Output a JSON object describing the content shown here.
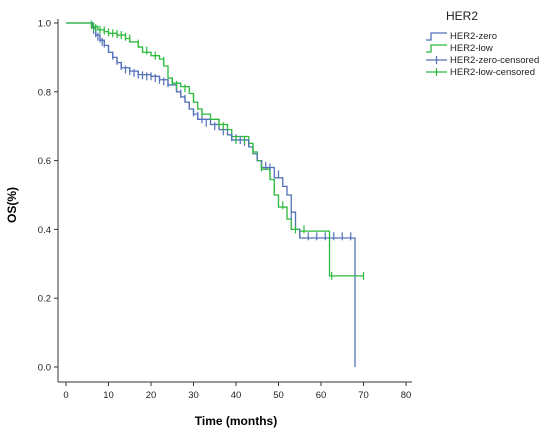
{
  "chart_data": {
    "type": "line",
    "subtype": "kaplan-meier",
    "xlabel": "Time (months)",
    "ylabel": "OS(%)",
    "xlim": [
      0,
      80
    ],
    "ylim": [
      0,
      1.0
    ],
    "xticks": [
      0,
      10,
      20,
      30,
      40,
      50,
      60,
      70,
      80
    ],
    "yticks": [
      0.0,
      0.2,
      0.4,
      0.6,
      0.8,
      1.0
    ],
    "grid": false,
    "legend": {
      "title": "HER2",
      "position": "top-right",
      "entries": [
        "HER2-zero",
        "HER2-low",
        "HER2-zero-censored",
        "HER2-low-censored"
      ]
    },
    "series": [
      {
        "name": "HER2-zero",
        "color": "#5470b8",
        "steps": [
          [
            0,
            1.0
          ],
          [
            6.2,
            0.985
          ],
          [
            7,
            0.965
          ],
          [
            8,
            0.95
          ],
          [
            9,
            0.935
          ],
          [
            10,
            0.915
          ],
          [
            11,
            0.9
          ],
          [
            12,
            0.885
          ],
          [
            13,
            0.87
          ],
          [
            15,
            0.86
          ],
          [
            17,
            0.85
          ],
          [
            20,
            0.845
          ],
          [
            22,
            0.835
          ],
          [
            24,
            0.82
          ],
          [
            26,
            0.8
          ],
          [
            27,
            0.785
          ],
          [
            28,
            0.77
          ],
          [
            29,
            0.75
          ],
          [
            30,
            0.735
          ],
          [
            31,
            0.72
          ],
          [
            34,
            0.705
          ],
          [
            36,
            0.69
          ],
          [
            38,
            0.675
          ],
          [
            39,
            0.66
          ],
          [
            43,
            0.64
          ],
          [
            44,
            0.62
          ],
          [
            45,
            0.6
          ],
          [
            46,
            0.58
          ],
          [
            49,
            0.55
          ],
          [
            51,
            0.525
          ],
          [
            52,
            0.5
          ],
          [
            53,
            0.45
          ],
          [
            54,
            0.4
          ],
          [
            55,
            0.375
          ],
          [
            68,
            0.0
          ]
        ],
        "censored": [
          [
            6,
            0.995
          ],
          [
            6.5,
            0.98
          ],
          [
            7,
            0.97
          ],
          [
            7.5,
            0.96
          ],
          [
            8,
            0.955
          ],
          [
            8.5,
            0.945
          ],
          [
            9,
            0.94
          ],
          [
            10,
            0.925
          ],
          [
            11,
            0.905
          ],
          [
            12,
            0.89
          ],
          [
            13,
            0.875
          ],
          [
            14,
            0.865
          ],
          [
            15,
            0.86
          ],
          [
            16,
            0.855
          ],
          [
            17,
            0.85
          ],
          [
            18,
            0.848
          ],
          [
            19,
            0.845
          ],
          [
            20,
            0.845
          ],
          [
            21,
            0.84
          ],
          [
            22,
            0.835
          ],
          [
            23,
            0.83
          ],
          [
            24,
            0.825
          ],
          [
            26,
            0.81
          ],
          [
            27,
            0.795
          ],
          [
            28,
            0.78
          ],
          [
            29,
            0.76
          ],
          [
            30,
            0.74
          ],
          [
            31,
            0.73
          ],
          [
            32,
            0.72
          ],
          [
            33,
            0.71
          ],
          [
            35,
            0.7
          ],
          [
            37,
            0.685
          ],
          [
            39,
            0.668
          ],
          [
            40,
            0.665
          ],
          [
            41,
            0.66
          ],
          [
            42,
            0.655
          ],
          [
            43,
            0.65
          ],
          [
            45,
            0.61
          ],
          [
            46,
            0.59
          ],
          [
            47,
            0.585
          ],
          [
            48,
            0.58
          ],
          [
            50,
            0.56
          ],
          [
            53,
            0.44
          ],
          [
            55,
            0.39
          ],
          [
            57,
            0.38
          ],
          [
            59,
            0.38
          ],
          [
            61,
            0.38
          ],
          [
            63,
            0.38
          ],
          [
            65,
            0.38
          ],
          [
            67,
            0.38
          ]
        ]
      },
      {
        "name": "HER2-low",
        "color": "#2cba3c",
        "steps": [
          [
            0,
            1.0
          ],
          [
            6,
            0.99
          ],
          [
            7.5,
            0.98
          ],
          [
            9,
            0.975
          ],
          [
            10,
            0.97
          ],
          [
            12,
            0.965
          ],
          [
            14,
            0.955
          ],
          [
            15,
            0.945
          ],
          [
            17,
            0.93
          ],
          [
            18,
            0.915
          ],
          [
            20,
            0.905
          ],
          [
            22,
            0.895
          ],
          [
            23,
            0.875
          ],
          [
            24,
            0.84
          ],
          [
            25,
            0.825
          ],
          [
            27,
            0.815
          ],
          [
            29,
            0.795
          ],
          [
            30,
            0.77
          ],
          [
            31,
            0.75
          ],
          [
            32,
            0.735
          ],
          [
            34,
            0.72
          ],
          [
            36,
            0.705
          ],
          [
            38,
            0.69
          ],
          [
            39,
            0.67
          ],
          [
            43,
            0.65
          ],
          [
            44,
            0.625
          ],
          [
            45,
            0.6
          ],
          [
            46,
            0.575
          ],
          [
            48,
            0.545
          ],
          [
            49,
            0.5
          ],
          [
            50,
            0.465
          ],
          [
            52,
            0.43
          ],
          [
            53,
            0.4
          ],
          [
            55,
            0.395
          ],
          [
            62,
            0.265
          ]
        ],
        "censored": [
          [
            6,
            0.995
          ],
          [
            6.5,
            0.99
          ],
          [
            7,
            0.985
          ],
          [
            8,
            0.98
          ],
          [
            9,
            0.978
          ],
          [
            10,
            0.973
          ],
          [
            11,
            0.97
          ],
          [
            12,
            0.968
          ],
          [
            13,
            0.965
          ],
          [
            14,
            0.96
          ],
          [
            15,
            0.955
          ],
          [
            17,
            0.94
          ],
          [
            19,
            0.92
          ],
          [
            21,
            0.905
          ],
          [
            23,
            0.89
          ],
          [
            25,
            0.83
          ],
          [
            26,
            0.82
          ],
          [
            28,
            0.81
          ],
          [
            30,
            0.78
          ],
          [
            32,
            0.74
          ],
          [
            36,
            0.71
          ],
          [
            37,
            0.7
          ],
          [
            40,
            0.66
          ],
          [
            42,
            0.66
          ],
          [
            44,
            0.63
          ],
          [
            46,
            0.58
          ],
          [
            48,
            0.56
          ],
          [
            49,
            0.52
          ],
          [
            51,
            0.47
          ],
          [
            54,
            0.4
          ],
          [
            56,
            0.4
          ],
          [
            62.5,
            0.265
          ],
          [
            70,
            0.265
          ]
        ]
      }
    ]
  }
}
